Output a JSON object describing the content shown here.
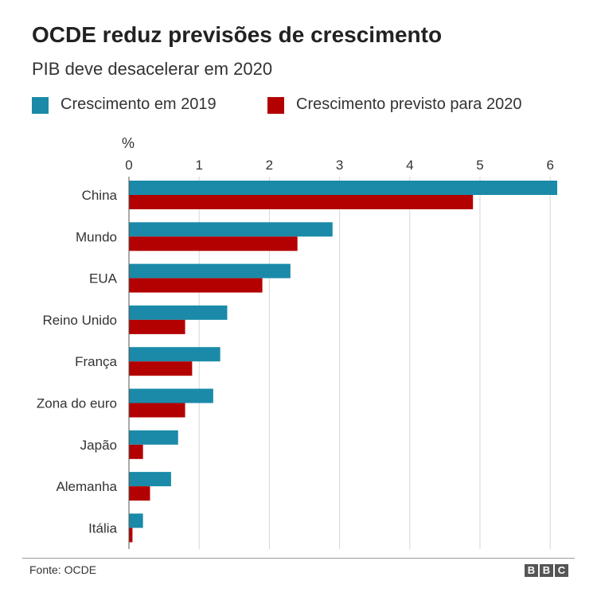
{
  "title": "OCDE reduz previsões de crescimento",
  "subtitle": "PIB deve desacelerar em 2020",
  "colors": {
    "series_2019": "#1a8aa8",
    "series_2020": "#b30000",
    "grid": "#d6d6d6",
    "axis": "#555555"
  },
  "source": "Fonte: OCDE",
  "logo": [
    "B",
    "B",
    "C"
  ],
  "chart_data": {
    "type": "bar",
    "orientation": "horizontal",
    "unit_label": "%",
    "categories": [
      "China",
      "Mundo",
      "EUA",
      "Reino Unido",
      "França",
      "Zona do euro",
      "Japão",
      "Alemanha",
      "Itália"
    ],
    "series": [
      {
        "name": "Crescimento em 2019",
        "values": [
          6.1,
          2.9,
          2.3,
          1.4,
          1.3,
          1.2,
          0.7,
          0.6,
          0.2
        ]
      },
      {
        "name": "Crescimento previsto para 2020",
        "values": [
          4.9,
          2.4,
          1.9,
          0.8,
          0.9,
          0.8,
          0.2,
          0.3,
          0.05
        ]
      }
    ],
    "xlim": [
      0,
      6.1
    ],
    "xticks": [
      0,
      1,
      2,
      3,
      4,
      5,
      6
    ],
    "grid": true,
    "legend_position": "top"
  }
}
